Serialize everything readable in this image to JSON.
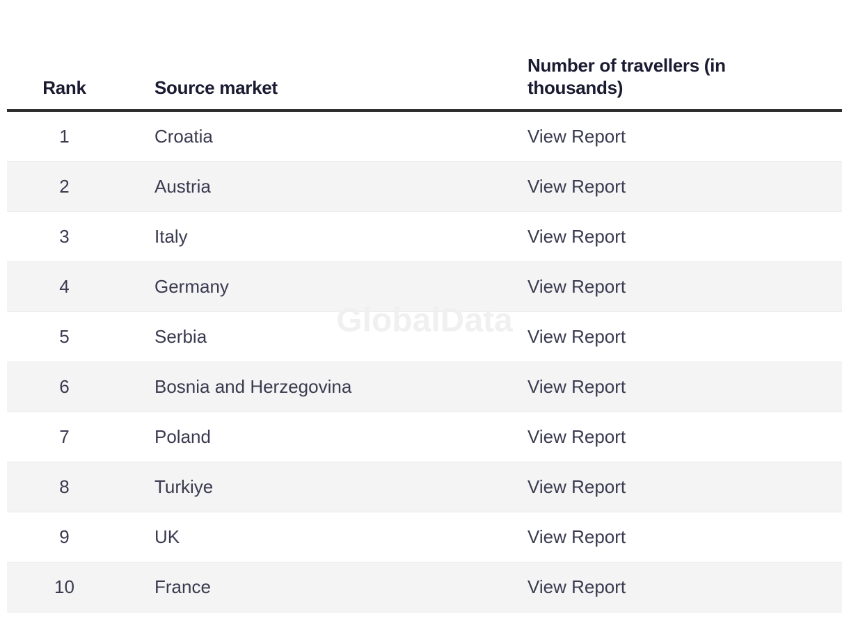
{
  "watermark": "GlobalData",
  "table": {
    "columns": [
      {
        "key": "rank",
        "label": "Rank"
      },
      {
        "key": "source_market",
        "label": "Source market"
      },
      {
        "key": "travellers",
        "label": "Number of travellers (in thousands)"
      }
    ],
    "rows": [
      {
        "rank": "1",
        "source_market": "Croatia",
        "action": "View Report"
      },
      {
        "rank": "2",
        "source_market": "Austria",
        "action": "View Report"
      },
      {
        "rank": "3",
        "source_market": "Italy",
        "action": "View Report"
      },
      {
        "rank": "4",
        "source_market": "Germany",
        "action": "View Report"
      },
      {
        "rank": "5",
        "source_market": "Serbia",
        "action": "View Report"
      },
      {
        "rank": "6",
        "source_market": "Bosnia and Herzegovina",
        "action": "View Report"
      },
      {
        "rank": "7",
        "source_market": "Poland",
        "action": "View Report"
      },
      {
        "rank": "8",
        "source_market": "Turkiye",
        "action": "View Report"
      },
      {
        "rank": "9",
        "source_market": "UK",
        "action": "View Report"
      },
      {
        "rank": "10",
        "source_market": "France",
        "action": "View Report"
      }
    ]
  },
  "colors": {
    "header_text": "#1a1a31",
    "body_text": "#3a3a50",
    "stripe": "#f4f4f4",
    "row_border": "#eaeaea",
    "header_border": "#2f2f2f",
    "watermark": "#f0f0f0",
    "page_bg": "#ffffff"
  }
}
